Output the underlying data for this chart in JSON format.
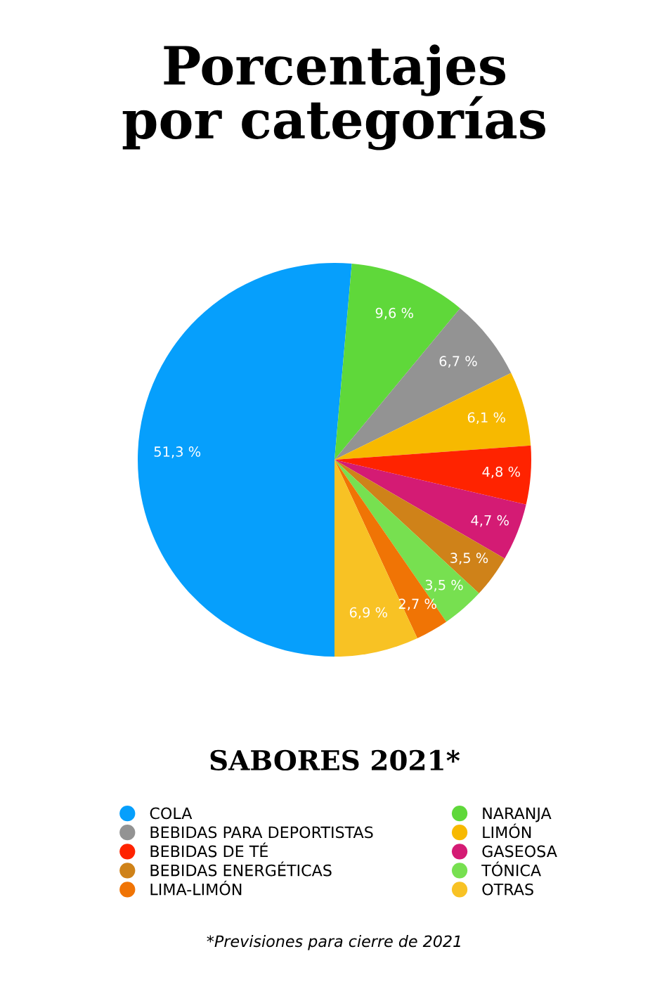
{
  "chart_data": {
    "type": "pie",
    "title": "Porcentajes\npor categorías",
    "legend_title": "SABORES 2021*",
    "categories": [
      "COLA",
      "NARANJA",
      "BEBIDAS PARA DEPORTISTAS",
      "LIMÓN",
      "BEBIDAS DE TÉ",
      "GASEOSA",
      "BEBIDAS ENERGÉTICAS",
      "TÓNICA",
      "LIMA-LIMÓN",
      "OTRAS"
    ],
    "values": [
      51.3,
      9.6,
      6.7,
      6.1,
      4.8,
      4.7,
      3.5,
      3.5,
      2.7,
      6.9
    ],
    "value_labels": [
      "51,3 %",
      "9,6 %",
      "6,7 %",
      "6,1 %",
      "4,8 %",
      "4,7 %",
      "3,5 %",
      "3,5 %",
      "2,7 %",
      "6,9 %"
    ],
    "colors": [
      "#069ffc",
      "#5fd83a",
      "#939393",
      "#f7b900",
      "#ff2300",
      "#d41b74",
      "#cf8219",
      "#77e050",
      "#f07405",
      "#f8c224"
    ],
    "legend": "bottom",
    "annotations": [
      "*Previsiones para cierre de 2021"
    ]
  }
}
